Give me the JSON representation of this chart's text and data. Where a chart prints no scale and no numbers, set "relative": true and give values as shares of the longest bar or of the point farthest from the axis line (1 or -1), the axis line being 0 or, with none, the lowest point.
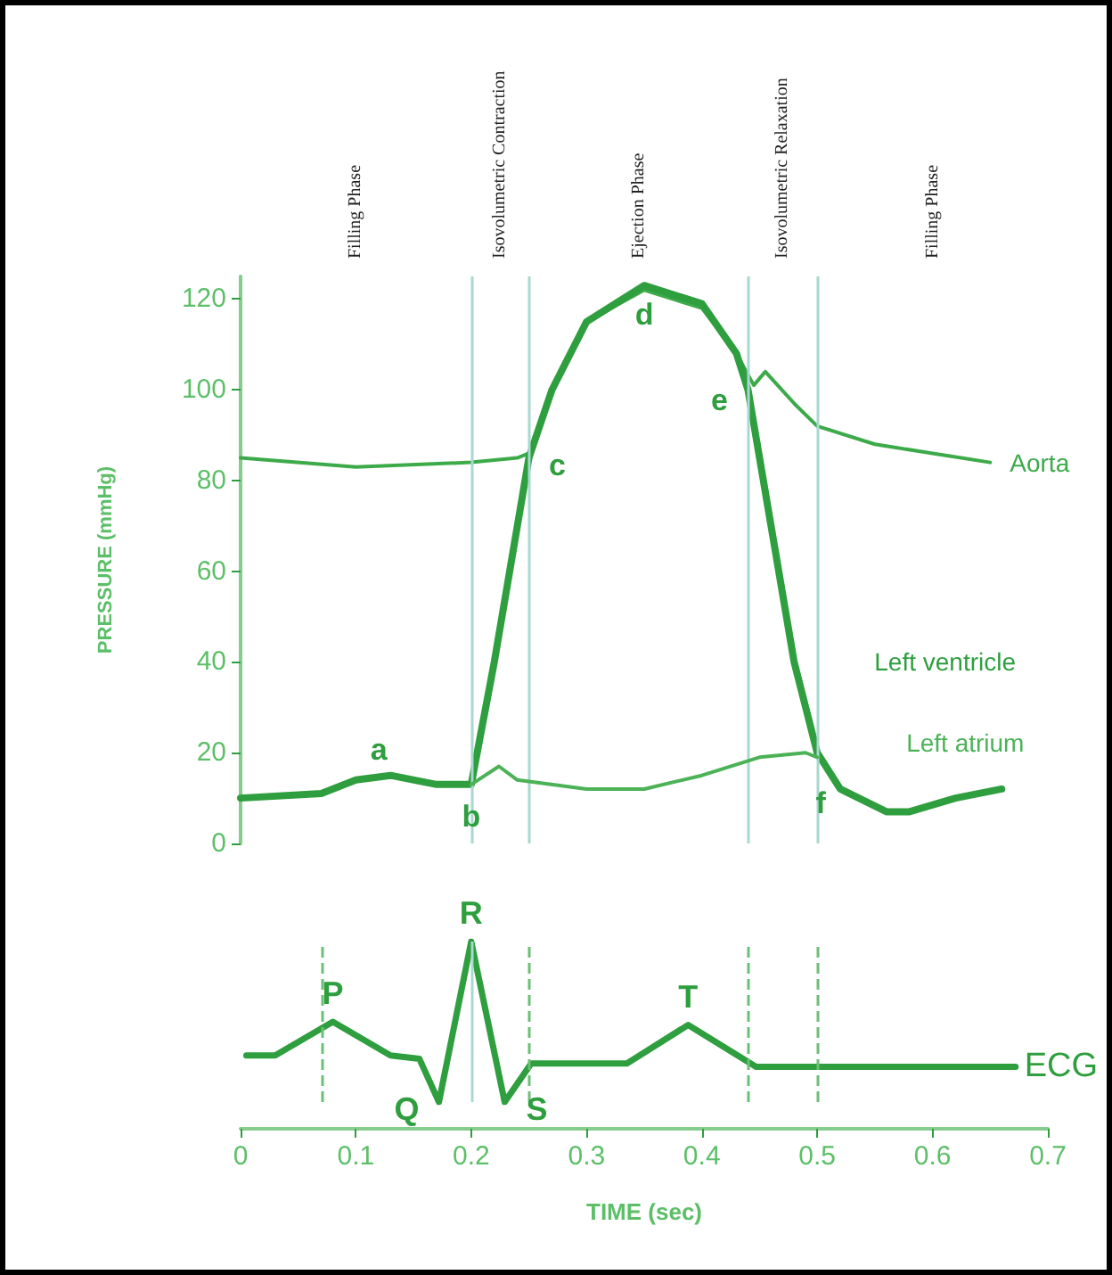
{
  "chart_data": [
    {
      "type": "line",
      "ylabel": "PRESSURE (mmHg)",
      "xlim": [
        0,
        0.7
      ],
      "ylim": [
        0,
        125
      ],
      "yticks": [
        0,
        20,
        40,
        60,
        80,
        100,
        120
      ],
      "xticks": [
        0,
        0.1,
        0.2,
        0.3,
        0.4,
        0.5,
        0.6,
        0.7
      ],
      "tick_labels": "y",
      "grid": false,
      "legend": false,
      "marker": "none",
      "series": [
        {
          "name": "Aorta",
          "color": "#3daa4a",
          "x": [
            0,
            0.1,
            0.2,
            0.24,
            0.25,
            0.27,
            0.3,
            0.35,
            0.4,
            0.43,
            0.445,
            0.455,
            0.48,
            0.5,
            0.55,
            0.6,
            0.65
          ],
          "values": [
            85,
            83,
            84,
            85,
            86,
            100,
            115,
            122,
            118,
            108,
            101,
            104,
            97,
            92,
            88,
            86,
            84
          ]
        },
        {
          "name": "Left ventricle",
          "color": "#2e9e3e",
          "x": [
            0,
            0.07,
            0.1,
            0.13,
            0.17,
            0.2,
            0.22,
            0.24,
            0.25,
            0.27,
            0.3,
            0.35,
            0.4,
            0.43,
            0.44,
            0.46,
            0.48,
            0.5,
            0.52,
            0.56,
            0.58,
            0.62,
            0.66
          ],
          "values": [
            10,
            11,
            14,
            15,
            13,
            13,
            40,
            70,
            85,
            100,
            115,
            123,
            119,
            108,
            100,
            70,
            40,
            20,
            12,
            7,
            7,
            10,
            12
          ]
        },
        {
          "name": "Left atrium",
          "color": "#4cb257",
          "x": [
            0.2,
            0.224,
            0.24,
            0.3,
            0.35,
            0.4,
            0.45,
            0.49,
            0.5
          ],
          "values": [
            13,
            17,
            14,
            12,
            12,
            15,
            19,
            20,
            19
          ]
        }
      ],
      "ref_lines": [
        {
          "axis": "x",
          "value": 0.2,
          "color": "#a8d8d0"
        },
        {
          "axis": "x",
          "value": 0.25,
          "color": "#a8d8d0"
        },
        {
          "axis": "x",
          "value": 0.44,
          "color": "#a8d8d0"
        },
        {
          "axis": "x",
          "value": 0.5,
          "color": "#a8d8d0"
        }
      ],
      "annotations": [
        "Filling Phase",
        "Isovolumetric Contraction",
        "Ejection Phase",
        "Isovolumetric Relaxation",
        "Filling Phase",
        {
          "text": "a",
          "x": 0.12,
          "y": 16
        },
        {
          "text": "b",
          "x": 0.2,
          "y": 13
        },
        {
          "text": "c",
          "x": 0.25,
          "y": 85
        },
        {
          "text": "d",
          "x": 0.35,
          "y": 122
        },
        {
          "text": "e",
          "x": 0.44,
          "y": 100
        },
        {
          "text": "f",
          "x": 0.5,
          "y": 19
        }
      ]
    },
    {
      "type": "line",
      "xlabel": "TIME (sec)",
      "relative": true,
      "xlim": [
        0,
        0.7
      ],
      "xticks": [
        0,
        0.1,
        0.2,
        0.3,
        0.4,
        0.5,
        0.6,
        0.7
      ],
      "tick_labels": "x",
      "grid": false,
      "legend": false,
      "marker": "none",
      "series": [
        {
          "name": "ECG",
          "color": "#2e9e3e",
          "x": [
            0.005,
            0.03,
            0.08,
            0.13,
            0.155,
            0.172,
            0.2,
            0.229,
            0.252,
            0.335,
            0.388,
            0.447,
            0.672
          ],
          "values": [
            0.29,
            0.29,
            0.5,
            0.29,
            0.27,
            0,
            1,
            0,
            0.24,
            0.24,
            0.48,
            0.22,
            0.22
          ]
        }
      ],
      "ref_lines": [
        {
          "axis": "x",
          "value": 0.071,
          "color": "#6cbf76",
          "line_style": "dashed"
        },
        {
          "axis": "x",
          "value": 0.2,
          "color": "#a8d8d0"
        },
        {
          "axis": "x",
          "value": 0.25,
          "color": "#6cbf76",
          "line_style": "dashed"
        },
        {
          "axis": "x",
          "value": 0.44,
          "color": "#6cbf76",
          "line_style": "dashed"
        },
        {
          "axis": "x",
          "value": 0.5,
          "color": "#6cbf76",
          "line_style": "dashed"
        }
      ],
      "annotations": [
        {
          "text": "P",
          "x": 0.08,
          "y": 0.5
        },
        {
          "text": "Q",
          "x": 0.172,
          "y": 0
        },
        {
          "text": "R",
          "x": 0.2,
          "y": 1
        },
        {
          "text": "S",
          "x": 0.229,
          "y": 0
        },
        {
          "text": "T",
          "x": 0.388,
          "y": 0.48
        }
      ]
    }
  ]
}
